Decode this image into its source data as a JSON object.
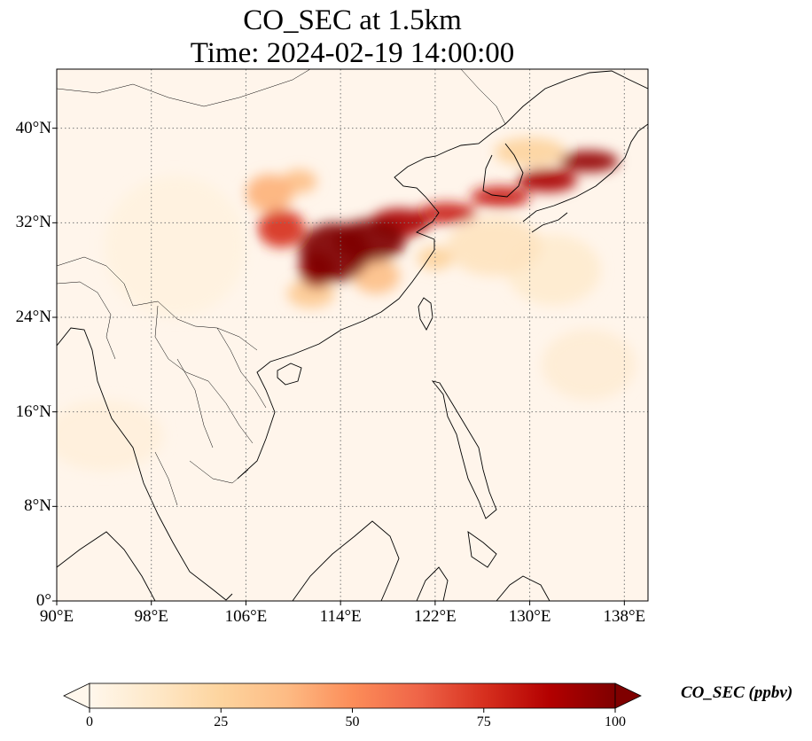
{
  "title": {
    "line1": "CO_SEC at 1.5km",
    "line2": "Time: 2024-02-19 14:00:00"
  },
  "map": {
    "extent_lon": [
      90,
      140
    ],
    "extent_lat": [
      0,
      45
    ],
    "gridlines": true,
    "lat_ticks": [
      {
        "value": 40,
        "label": "40°N"
      },
      {
        "value": 32,
        "label": "32°N"
      },
      {
        "value": 24,
        "label": "24°N"
      },
      {
        "value": 16,
        "label": "16°N"
      },
      {
        "value": 8,
        "label": "8°N"
      },
      {
        "value": 0,
        "label": "0°"
      }
    ],
    "lon_ticks": [
      {
        "value": 90,
        "label": "90°E"
      },
      {
        "value": 98,
        "label": "98°E"
      },
      {
        "value": 106,
        "label": "106°E"
      },
      {
        "value": 114,
        "label": "114°E"
      },
      {
        "value": 122,
        "label": "122°E"
      },
      {
        "value": 130,
        "label": "130°E"
      },
      {
        "value": 138,
        "label": "138°E"
      }
    ],
    "colormap": "OrRd",
    "plume": [
      {
        "lon": 113.5,
        "lat": 29.5,
        "rx": 3.0,
        "ry": 2.5,
        "level": 100
      },
      {
        "lon": 116.5,
        "lat": 30.5,
        "rx": 3.0,
        "ry": 1.8,
        "level": 100
      },
      {
        "lon": 112.0,
        "lat": 28.0,
        "rx": 1.5,
        "ry": 1.5,
        "level": 95
      },
      {
        "lon": 119.0,
        "lat": 32.0,
        "rx": 2.5,
        "ry": 1.2,
        "level": 90
      },
      {
        "lon": 123.0,
        "lat": 32.8,
        "rx": 2.5,
        "ry": 0.9,
        "level": 80
      },
      {
        "lon": 127.5,
        "lat": 34.2,
        "rx": 2.5,
        "ry": 0.9,
        "level": 80
      },
      {
        "lon": 131.5,
        "lat": 35.6,
        "rx": 2.5,
        "ry": 1.0,
        "level": 90
      },
      {
        "lon": 135.0,
        "lat": 37.2,
        "rx": 2.5,
        "ry": 0.9,
        "level": 95
      },
      {
        "lon": 109.0,
        "lat": 31.5,
        "rx": 2.0,
        "ry": 1.6,
        "level": 75
      },
      {
        "lon": 108.0,
        "lat": 34.5,
        "rx": 2.0,
        "ry": 1.6,
        "level": 40
      },
      {
        "lon": 110.5,
        "lat": 35.5,
        "rx": 1.5,
        "ry": 1.0,
        "level": 35
      },
      {
        "lon": 111.5,
        "lat": 26.0,
        "rx": 2.0,
        "ry": 1.2,
        "level": 30
      },
      {
        "lon": 117.0,
        "lat": 27.5,
        "rx": 2.0,
        "ry": 1.5,
        "level": 35
      },
      {
        "lon": 122.0,
        "lat": 29.0,
        "rx": 1.5,
        "ry": 1.0,
        "level": 25
      },
      {
        "lon": 130.0,
        "lat": 38.0,
        "rx": 3.0,
        "ry": 1.2,
        "level": 25
      },
      {
        "lon": 127.0,
        "lat": 30.0,
        "rx": 4.0,
        "ry": 2.5,
        "level": 15
      },
      {
        "lon": 132.0,
        "lat": 28.0,
        "rx": 4.0,
        "ry": 3.0,
        "level": 10
      },
      {
        "lon": 135.0,
        "lat": 20.0,
        "rx": 4.0,
        "ry": 3.0,
        "level": 8
      },
      {
        "lon": 94.0,
        "lat": 14.0,
        "rx": 5.0,
        "ry": 3.0,
        "level": 6
      },
      {
        "lon": 100.0,
        "lat": 30.0,
        "rx": 6.0,
        "ry": 6.0,
        "level": 4
      }
    ]
  },
  "colorbar": {
    "label": "CO_SEC (ppbv)",
    "min": 0,
    "max": 100,
    "extend": "both",
    "ticks": [
      0,
      25,
      50,
      75,
      100
    ]
  }
}
